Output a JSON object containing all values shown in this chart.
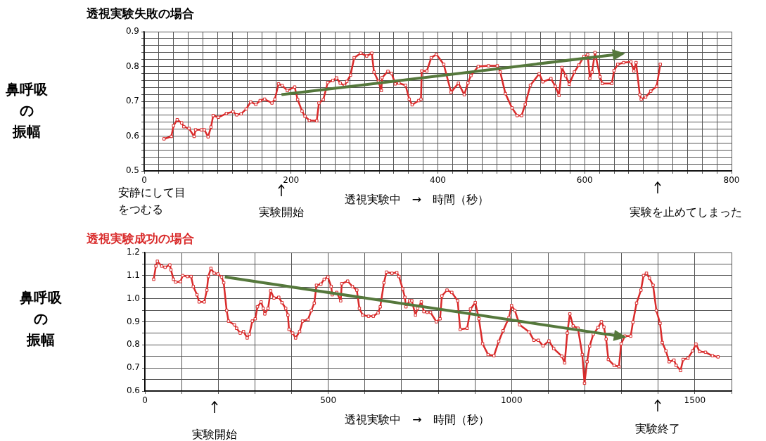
{
  "chart_data": [
    {
      "type": "line",
      "title": "透視実験失敗の場合",
      "ylabel": "鼻呼吸の振幅",
      "xlabel": "透視実験中　→　時間（秒）",
      "xlim": [
        0,
        800
      ],
      "ylim": [
        0.5,
        0.9
      ],
      "xticks": [
        0,
        {
          "value": 20,
          "label": null
        },
        {
          "value": 40,
          "label": null
        },
        {
          "value": 60,
          "label": null
        },
        {
          "value": 80,
          "label": null
        },
        {
          "value": 100,
          "label": null
        },
        {
          "value": 120,
          "label": null
        },
        {
          "value": 140,
          "label": null
        },
        {
          "value": 160,
          "label": null
        },
        {
          "value": 180,
          "label": null
        },
        200,
        {
          "value": 220,
          "label": null
        },
        {
          "value": 240,
          "label": null
        },
        {
          "value": 260,
          "label": null
        },
        {
          "value": 280,
          "label": null
        },
        {
          "value": 300,
          "label": null
        },
        {
          "value": 320,
          "label": null
        },
        {
          "value": 340,
          "label": null
        },
        {
          "value": 360,
          "label": null
        },
        {
          "value": 380,
          "label": null
        },
        400,
        {
          "value": 420,
          "label": null
        },
        {
          "value": 440,
          "label": null
        },
        {
          "value": 460,
          "label": null
        },
        {
          "value": 480,
          "label": null
        },
        {
          "value": 500,
          "label": null
        },
        {
          "value": 520,
          "label": null
        },
        {
          "value": 540,
          "label": null
        },
        {
          "value": 560,
          "label": null
        },
        {
          "value": 580,
          "label": null
        },
        600,
        {
          "value": 620,
          "label": null
        },
        {
          "value": 640,
          "label": null
        },
        {
          "value": 660,
          "label": null
        },
        {
          "value": 680,
          "label": null
        },
        {
          "value": 700,
          "label": null
        },
        {
          "value": 720,
          "label": null
        },
        {
          "value": 740,
          "label": null
        },
        {
          "value": 760,
          "label": null
        },
        {
          "value": 780,
          "label": null
        },
        800
      ],
      "yticks": [
        0.5,
        {
          "value": 0.52,
          "label": null
        },
        {
          "value": 0.54,
          "label": null
        },
        {
          "value": 0.56,
          "label": null
        },
        {
          "value": 0.58,
          "label": null
        },
        0.6,
        {
          "value": 0.62,
          "label": null
        },
        {
          "value": 0.64,
          "label": null
        },
        {
          "value": 0.66,
          "label": null
        },
        {
          "value": 0.68,
          "label": null
        },
        0.7,
        {
          "value": 0.72,
          "label": null
        },
        {
          "value": 0.74,
          "label": null
        },
        {
          "value": 0.76,
          "label": null
        },
        {
          "value": 0.78,
          "label": null
        },
        0.8,
        {
          "value": 0.82,
          "label": null
        },
        {
          "value": 0.84,
          "label": null
        },
        {
          "value": 0.86,
          "label": null
        },
        {
          "value": 0.88,
          "label": null
        },
        0.9
      ],
      "grid": true,
      "legend": false,
      "line_style": "solid",
      "annotations": [
        "安静にして目をつむる",
        "実験開始",
        "実験を止めてしまった"
      ],
      "series": [
        {
          "color": "#d92b2b",
          "marker": "square",
          "x": [
            27,
            37,
            40,
            45,
            51,
            54,
            61,
            68,
            70,
            78,
            82,
            87,
            91,
            94,
            101,
            112,
            121,
            126,
            132,
            139,
            145,
            152,
            158,
            164,
            174,
            178,
            183,
            188,
            195,
            205,
            209,
            215,
            219,
            225,
            235,
            238,
            244,
            250,
            257,
            262,
            267,
            273,
            276,
            281,
            286,
            295,
            303,
            310,
            313,
            319,
            323,
            324,
            332,
            337,
            342,
            347,
            356,
            361,
            365,
            374,
            377,
            378,
            385,
            391,
            398,
            408,
            418,
            428,
            436,
            441,
            445,
            455,
            469,
            481,
            485,
            492,
            501,
            508,
            514,
            519,
            526,
            538,
            543,
            554,
            560,
            565,
            569,
            574,
            579,
            586,
            592,
            599,
            604,
            607,
            610,
            614,
            621,
            624,
            637,
            640,
            645,
            653,
            663,
            667,
            670,
            675,
            677,
            683,
            690,
            698,
            703
          ],
          "values": [
            0.592,
            0.599,
            0.63,
            0.647,
            0.638,
            0.627,
            0.622,
            0.599,
            0.618,
            0.618,
            0.618,
            0.598,
            0.626,
            0.659,
            0.654,
            0.665,
            0.67,
            0.661,
            0.664,
            0.678,
            0.698,
            0.691,
            0.702,
            0.706,
            0.695,
            0.706,
            0.75,
            0.745,
            0.731,
            0.741,
            0.705,
            0.672,
            0.657,
            0.645,
            0.644,
            0.695,
            0.705,
            0.754,
            0.76,
            0.767,
            0.752,
            0.745,
            0.757,
            0.775,
            0.825,
            0.838,
            0.83,
            0.838,
            0.784,
            0.757,
            0.731,
            0.768,
            0.786,
            0.78,
            0.75,
            0.752,
            0.746,
            0.706,
            0.69,
            0.702,
            0.706,
            0.787,
            0.787,
            0.825,
            0.835,
            0.806,
            0.726,
            0.752,
            0.719,
            0.753,
            0.774,
            0.8,
            0.802,
            0.802,
            0.784,
            0.722,
            0.681,
            0.659,
            0.659,
            0.691,
            0.746,
            0.779,
            0.756,
            0.765,
            0.743,
            0.717,
            0.797,
            0.773,
            0.749,
            0.784,
            0.804,
            0.829,
            0.834,
            0.766,
            0.784,
            0.84,
            0.77,
            0.751,
            0.751,
            0.788,
            0.806,
            0.811,
            0.813,
            0.787,
            0.811,
            0.719,
            0.706,
            0.712,
            0.729,
            0.743,
            0.806
          ]
        },
        {
          "type": "line",
          "color": "#55783c",
          "x": [
            187,
            645
          ],
          "values": [
            0.719,
            0.835
          ]
        }
      ]
    },
    {
      "type": "line",
      "title": "透視実験成功の場合",
      "ylabel": "鼻呼吸の振幅",
      "xlabel": "透視実験中　→　時間（秒）",
      "xlim": [
        0,
        1600
      ],
      "ylim": [
        0.6,
        1.2
      ],
      "xticks": [
        0,
        {
          "value": 100,
          "label": null
        },
        {
          "value": 200,
          "label": null
        },
        {
          "value": 300,
          "label": null
        },
        {
          "value": 400,
          "label": null
        },
        500,
        {
          "value": 600,
          "label": null
        },
        {
          "value": 700,
          "label": null
        },
        {
          "value": 800,
          "label": null
        },
        {
          "value": 900,
          "label": null
        },
        1000,
        {
          "value": 1100,
          "label": null
        },
        {
          "value": 1200,
          "label": null
        },
        {
          "value": 1300,
          "label": null
        },
        {
          "value": 1400,
          "label": null
        },
        1500,
        {
          "value": 1600,
          "label": null
        }
      ],
      "yticks": [
        0.6,
        {
          "value": 0.65,
          "label": null
        },
        0.7,
        {
          "value": 0.75,
          "label": null
        },
        0.8,
        {
          "value": 0.85,
          "label": null
        },
        0.9,
        {
          "value": 0.95,
          "label": null
        },
        {
          "value": 1,
          "label": "1.0"
        },
        {
          "value": 1.05,
          "label": null
        },
        1.1,
        {
          "value": 1.15,
          "label": null
        },
        1.2
      ],
      "grid": true,
      "legend": false,
      "line_style": "solid",
      "annotations": [
        "実験開始",
        "実験終了"
      ],
      "series": [
        {
          "color": "#d92b2b",
          "marker": "square",
          "x": [
            24,
            30,
            34,
            46,
            55,
            68,
            71,
            78,
            84,
            97,
            103,
            116,
            126,
            132,
            142,
            148,
            162,
            169,
            173,
            180,
            189,
            199,
            209,
            215,
            223,
            228,
            244,
            250,
            260,
            269,
            279,
            285,
            293,
            301,
            307,
            317,
            323,
            327,
            336,
            343,
            352,
            365,
            374,
            384,
            390,
            393,
            403,
            411,
            422,
            430,
            445,
            454,
            462,
            468,
            480,
            489,
            499,
            508,
            511,
            523,
            534,
            537,
            553,
            566,
            578,
            585,
            594,
            610,
            623,
            636,
            642,
            652,
            659,
            674,
            687,
            693,
            703,
            709,
            712,
            722,
            728,
            738,
            744,
            754,
            761,
            770,
            779,
            795,
            805,
            810,
            824,
            837,
            853,
            860,
            879,
            888,
            901,
            911,
            921,
            936,
            952,
            965,
            977,
            993,
            1000,
            1009,
            1022,
            1048,
            1061,
            1073,
            1086,
            1102,
            1115,
            1137,
            1145,
            1152,
            1159,
            1168,
            1181,
            1193,
            1199,
            1206,
            1213,
            1223,
            1236,
            1245,
            1252,
            1258,
            1264,
            1280,
            1293,
            1299,
            1309,
            1325,
            1331,
            1341,
            1353,
            1360,
            1368,
            1376,
            1386,
            1395,
            1405,
            1411,
            1421,
            1430,
            1443,
            1449,
            1461,
            1468,
            1481,
            1494,
            1503,
            1513,
            1529,
            1548,
            1563
          ],
          "values": [
            1.084,
            1.141,
            1.162,
            1.141,
            1.136,
            1.146,
            1.125,
            1.084,
            1.072,
            1.074,
            1.1,
            1.096,
            1.096,
            1.053,
            1.017,
            0.986,
            0.986,
            1.037,
            1.096,
            1.131,
            1.11,
            1.107,
            1.094,
            1.069,
            0.949,
            0.903,
            0.887,
            0.872,
            0.851,
            0.858,
            0.83,
            0.846,
            0.903,
            0.913,
            0.965,
            0.986,
            0.958,
            0.934,
            0.958,
            1.034,
            1.003,
            1.006,
            0.983,
            0.958,
            0.929,
            0.867,
            0.851,
            0.83,
            0.858,
            0.903,
            0.91,
            0.949,
            0.981,
            1.058,
            1.063,
            1.084,
            1.094,
            1.053,
            1.017,
            1.027,
            0.991,
            1.065,
            1.076,
            1.053,
            1.037,
            0.958,
            0.929,
            0.924,
            0.924,
            0.939,
            0.965,
            1.069,
            1.115,
            1.11,
            1.113,
            1.096,
            1.043,
            1.006,
            0.965,
            0.991,
            0.991,
            0.929,
            0.958,
            0.986,
            0.944,
            0.941,
            0.941,
            0.9,
            0.913,
            1.012,
            1.037,
            1.027,
            0.991,
            0.867,
            0.872,
            0.955,
            0.983,
            0.913,
            0.805,
            0.758,
            0.753,
            0.815,
            0.861,
            0.918,
            0.97,
            0.949,
            0.887,
            0.856,
            0.82,
            0.82,
            0.796,
            0.817,
            0.784,
            0.751,
            0.722,
            0.851,
            0.934,
            0.882,
            0.872,
            0.758,
            0.634,
            0.727,
            0.794,
            0.846,
            0.875,
            0.9,
            0.877,
            0.825,
            0.737,
            0.711,
            0.706,
            0.805,
            0.838,
            0.838,
            0.898,
            0.981,
            1.037,
            1.1,
            1.11,
            1.089,
            1.058,
            0.949,
            0.893,
            0.81,
            0.774,
            0.727,
            0.734,
            0.711,
            0.689,
            0.737,
            0.742,
            0.774,
            0.803,
            0.771,
            0.768,
            0.753,
            0.748
          ]
        },
        {
          "type": "line",
          "color": "#55783c",
          "x": [
            218,
            1293
          ],
          "values": [
            1.094,
            0.838
          ]
        }
      ]
    }
  ]
}
